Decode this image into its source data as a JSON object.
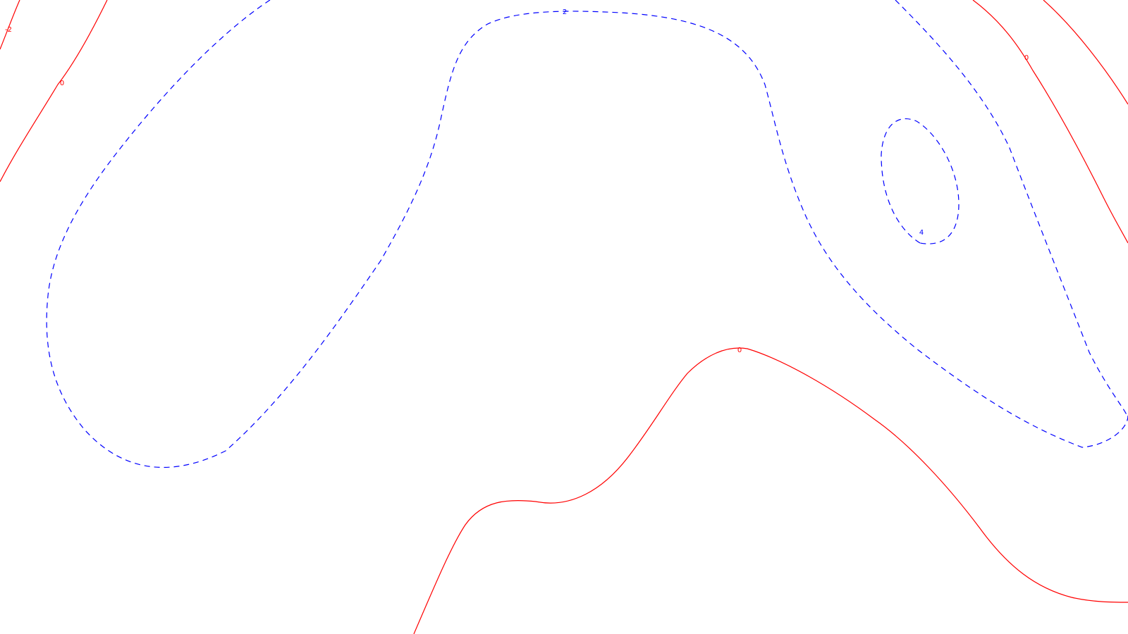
{
  "chart_data": {
    "type": "contour",
    "title": "",
    "xlabel": "",
    "ylabel": "",
    "grid": false,
    "legend": "none",
    "styles": {
      "positive": {
        "color": "#0000ff",
        "dash": "dashed"
      },
      "zero_or_negative": {
        "color": "#ff0000",
        "dash": "solid"
      }
    },
    "contours": [
      {
        "id": "neg2-top-left",
        "level": -2,
        "label": "-2",
        "color": "#ff0000",
        "style": "solid"
      },
      {
        "id": "zero-top-left",
        "level": 0,
        "label": "0",
        "color": "#ff0000",
        "style": "solid"
      },
      {
        "id": "two-large",
        "level": 2,
        "label": "2",
        "color": "#0000ff",
        "style": "dashed"
      },
      {
        "id": "two-right",
        "level": 2,
        "label": "",
        "color": "#0000ff",
        "style": "dashed"
      },
      {
        "id": "four-oval",
        "level": 4,
        "label": "4",
        "color": "#0000ff",
        "style": "dashed"
      },
      {
        "id": "zero-top-right",
        "level": 0,
        "label": "0",
        "color": "#ff0000",
        "style": "solid"
      },
      {
        "id": "zero-right-edge",
        "level": 0,
        "label": "",
        "color": "#ff0000",
        "style": "solid"
      },
      {
        "id": "zero-bottom",
        "level": 0,
        "label": "0",
        "color": "#ff0000",
        "style": "solid"
      }
    ]
  }
}
